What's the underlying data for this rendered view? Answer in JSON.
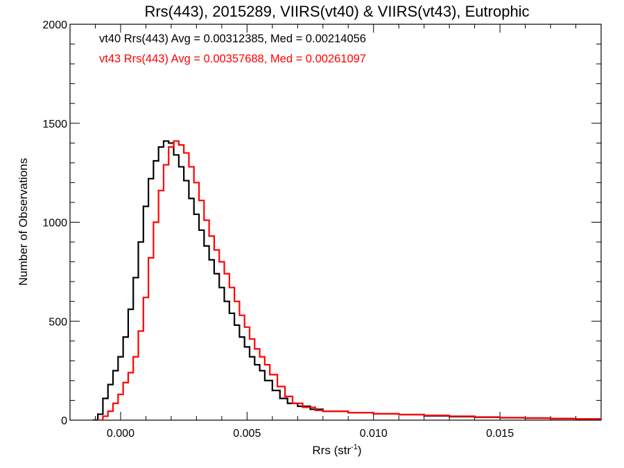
{
  "chart_data": {
    "type": "line",
    "title": "Rrs(443), 2015289, VIIRS(vt40) & VIIRS(vt43), Eutrophic",
    "xlabel": "Rrs (str",
    "xlabel_sup": "-1",
    "xlabel_close": ")",
    "ylabel": "Number of Observations",
    "xlim": [
      -0.002,
      0.019
    ],
    "ylim": [
      0,
      2000
    ],
    "xticks": [
      0.0,
      0.005,
      0.01,
      0.015
    ],
    "xtick_labels": [
      "0.000",
      "0.005",
      "0.010",
      "0.015"
    ],
    "yticks": [
      0,
      500,
      1000,
      1500,
      2000
    ],
    "ytick_labels": [
      "0",
      "500",
      "1000",
      "1500",
      "2000"
    ],
    "grid": false,
    "legend_placement": "top-left",
    "series": [
      {
        "legend": "vt40 Rrs(443) Avg = 0.00312385, Med = 0.00214056",
        "color": "#000000",
        "points": [
          [
            -0.0011,
            0
          ],
          [
            -0.0009,
            30
          ],
          [
            -0.0007,
            110
          ],
          [
            -0.0005,
            180
          ],
          [
            -0.0003,
            250
          ],
          [
            -0.0001,
            320
          ],
          [
            0.0001,
            420
          ],
          [
            0.0003,
            560
          ],
          [
            0.0005,
            720
          ],
          [
            0.0007,
            900
          ],
          [
            0.0009,
            1080
          ],
          [
            0.0011,
            1220
          ],
          [
            0.0013,
            1310
          ],
          [
            0.0015,
            1380
          ],
          [
            0.0017,
            1410
          ],
          [
            0.0019,
            1400
          ],
          [
            0.0021,
            1340
          ],
          [
            0.0023,
            1280
          ],
          [
            0.0025,
            1210
          ],
          [
            0.0027,
            1120
          ],
          [
            0.0029,
            1040
          ],
          [
            0.0031,
            960
          ],
          [
            0.0033,
            880
          ],
          [
            0.0035,
            810
          ],
          [
            0.0037,
            740
          ],
          [
            0.0039,
            670
          ],
          [
            0.0041,
            600
          ],
          [
            0.0043,
            540
          ],
          [
            0.0045,
            480
          ],
          [
            0.0047,
            420
          ],
          [
            0.0049,
            370
          ],
          [
            0.0051,
            320
          ],
          [
            0.0053,
            280
          ],
          [
            0.0055,
            250
          ],
          [
            0.0057,
            200
          ],
          [
            0.006,
            150
          ],
          [
            0.0063,
            110
          ],
          [
            0.0066,
            85
          ],
          [
            0.007,
            70
          ],
          [
            0.0075,
            55
          ],
          [
            0.008,
            45
          ],
          [
            0.009,
            38
          ],
          [
            0.01,
            32
          ],
          [
            0.011,
            28
          ],
          [
            0.012,
            22
          ],
          [
            0.013,
            18
          ],
          [
            0.014,
            15
          ],
          [
            0.015,
            12
          ],
          [
            0.016,
            10
          ],
          [
            0.017,
            8
          ],
          [
            0.018,
            6
          ],
          [
            0.019,
            4
          ]
        ]
      },
      {
        "legend": "vt43 Rrs(443) Avg = 0.00357688, Med = 0.00261097",
        "color": "#ff0000",
        "points": [
          [
            -0.0009,
            0
          ],
          [
            -0.0007,
            20
          ],
          [
            -0.0005,
            45
          ],
          [
            -0.0003,
            85
          ],
          [
            -0.0001,
            130
          ],
          [
            0.0001,
            190
          ],
          [
            0.0003,
            240
          ],
          [
            0.0005,
            320
          ],
          [
            0.0007,
            450
          ],
          [
            0.0009,
            620
          ],
          [
            0.0011,
            820
          ],
          [
            0.0013,
            1000
          ],
          [
            0.0015,
            1160
          ],
          [
            0.0017,
            1290
          ],
          [
            0.0019,
            1380
          ],
          [
            0.0021,
            1410
          ],
          [
            0.0023,
            1390
          ],
          [
            0.0025,
            1350
          ],
          [
            0.0027,
            1280
          ],
          [
            0.0029,
            1200
          ],
          [
            0.0031,
            1110
          ],
          [
            0.0033,
            1010
          ],
          [
            0.0035,
            930
          ],
          [
            0.0037,
            860
          ],
          [
            0.0039,
            800
          ],
          [
            0.0041,
            740
          ],
          [
            0.0043,
            670
          ],
          [
            0.0045,
            600
          ],
          [
            0.0047,
            530
          ],
          [
            0.0049,
            470
          ],
          [
            0.0051,
            410
          ],
          [
            0.0053,
            360
          ],
          [
            0.0055,
            320
          ],
          [
            0.0057,
            280
          ],
          [
            0.0059,
            230
          ],
          [
            0.0062,
            170
          ],
          [
            0.0065,
            120
          ],
          [
            0.0068,
            85
          ],
          [
            0.0072,
            65
          ],
          [
            0.0077,
            50
          ],
          [
            0.008,
            45
          ],
          [
            0.009,
            38
          ],
          [
            0.01,
            32
          ],
          [
            0.011,
            28
          ],
          [
            0.012,
            24
          ],
          [
            0.013,
            20
          ],
          [
            0.014,
            16
          ],
          [
            0.015,
            13
          ],
          [
            0.016,
            11
          ],
          [
            0.017,
            8
          ],
          [
            0.018,
            6
          ],
          [
            0.019,
            4
          ]
        ]
      }
    ]
  }
}
